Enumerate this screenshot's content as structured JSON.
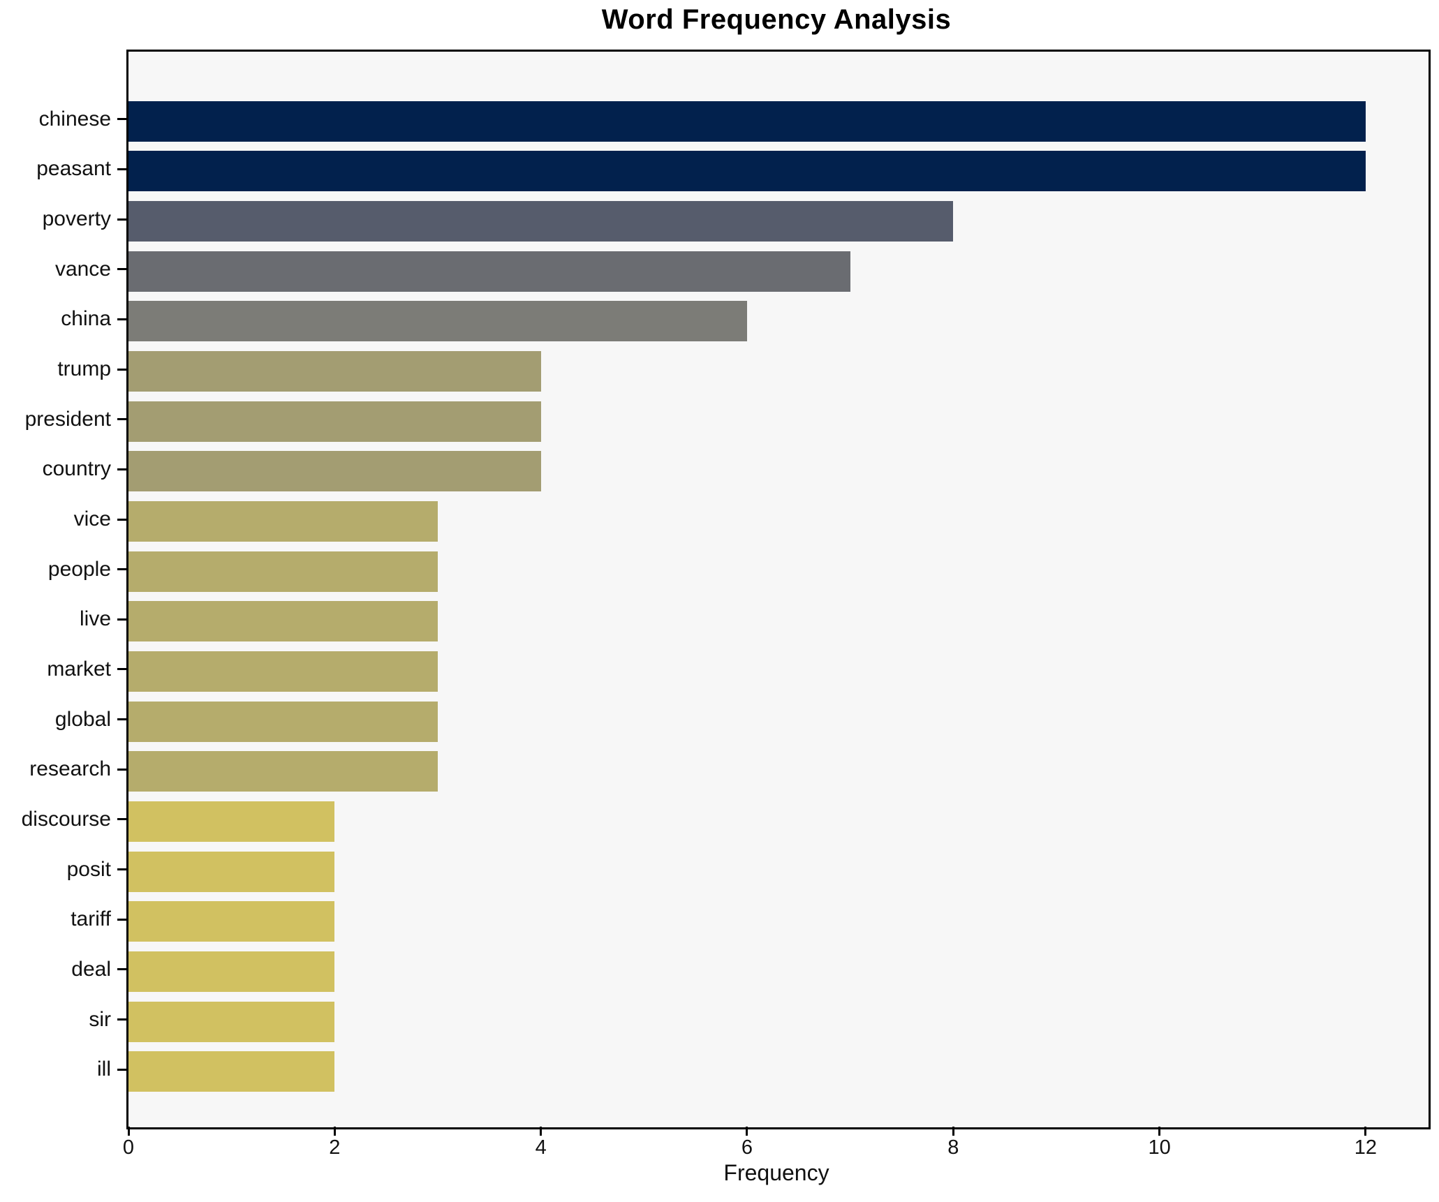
{
  "title": "Word Frequency Analysis",
  "x_axis": {
    "label": "Frequency",
    "tick_labels": [
      "0",
      "2",
      "4",
      "6",
      "8",
      "10",
      "12"
    ],
    "tick_values": [
      0,
      2,
      4,
      6,
      8,
      10,
      12
    ]
  },
  "colors": {
    "figure_background": "#ffffff",
    "axes_background": "#f7f7f7",
    "spine": "#000000",
    "text": "#111111"
  },
  "chart_data": {
    "type": "bar",
    "orientation": "horizontal",
    "title": "Word Frequency Analysis",
    "xlabel": "Frequency",
    "ylabel": "",
    "xlim": [
      0,
      12.61
    ],
    "grid": false,
    "legend": false,
    "categories": [
      "chinese",
      "peasant",
      "poverty",
      "vance",
      "china",
      "trump",
      "president",
      "country",
      "vice",
      "people",
      "live",
      "market",
      "global",
      "research",
      "discourse",
      "posit",
      "tariff",
      "deal",
      "sir",
      "ill"
    ],
    "values": [
      12,
      12,
      8,
      7,
      6,
      4,
      4,
      4,
      3,
      3,
      3,
      3,
      3,
      3,
      2,
      2,
      2,
      2,
      2,
      2
    ],
    "bar_colors": [
      "#02214d",
      "#02214d",
      "#565c6c",
      "#6a6c71",
      "#7c7c77",
      "#a39d72",
      "#a39d72",
      "#a39d72",
      "#b5ac6c",
      "#b5ac6c",
      "#b5ac6c",
      "#b5ac6c",
      "#b5ac6c",
      "#b5ac6c",
      "#d1c161",
      "#d1c161",
      "#d1c161",
      "#d1c161",
      "#d1c161",
      "#d1c161"
    ]
  }
}
